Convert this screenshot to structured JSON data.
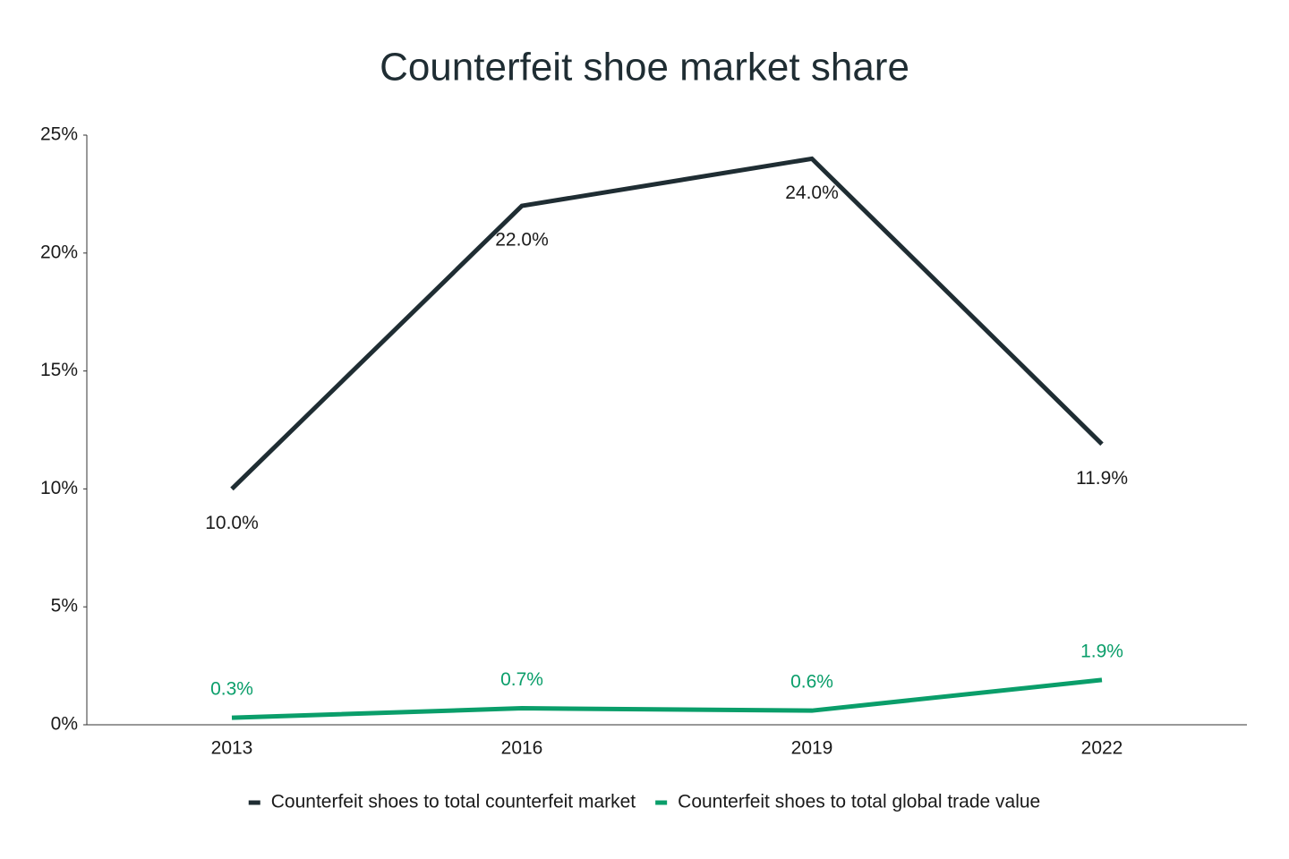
{
  "chart_data": {
    "type": "line",
    "title": "Counterfeit shoe market share",
    "categories": [
      "2013",
      "2016",
      "2019",
      "2022"
    ],
    "series": [
      {
        "name": "Counterfeit shoes to total counterfeit market",
        "color": "#1f2d33",
        "values": [
          10.0,
          22.0,
          24.0,
          11.9
        ],
        "value_labels": [
          "10.0%",
          "22.0%",
          "24.0%",
          "11.9%"
        ]
      },
      {
        "name": "Counterfeit shoes to total global trade value",
        "color": "#0a9e6a",
        "values": [
          0.3,
          0.7,
          0.6,
          1.9
        ],
        "value_labels": [
          "0.3%",
          "0.7%",
          "0.6%",
          "1.9%"
        ]
      }
    ],
    "ylim": [
      0,
      25
    ],
    "yticks": [
      {
        "value": 0,
        "label": "0%"
      },
      {
        "value": 5,
        "label": "5%"
      },
      {
        "value": 10,
        "label": "10%"
      },
      {
        "value": 15,
        "label": "15%"
      },
      {
        "value": 20,
        "label": "20%"
      },
      {
        "value": 25,
        "label": "25%"
      }
    ],
    "grid": false
  }
}
